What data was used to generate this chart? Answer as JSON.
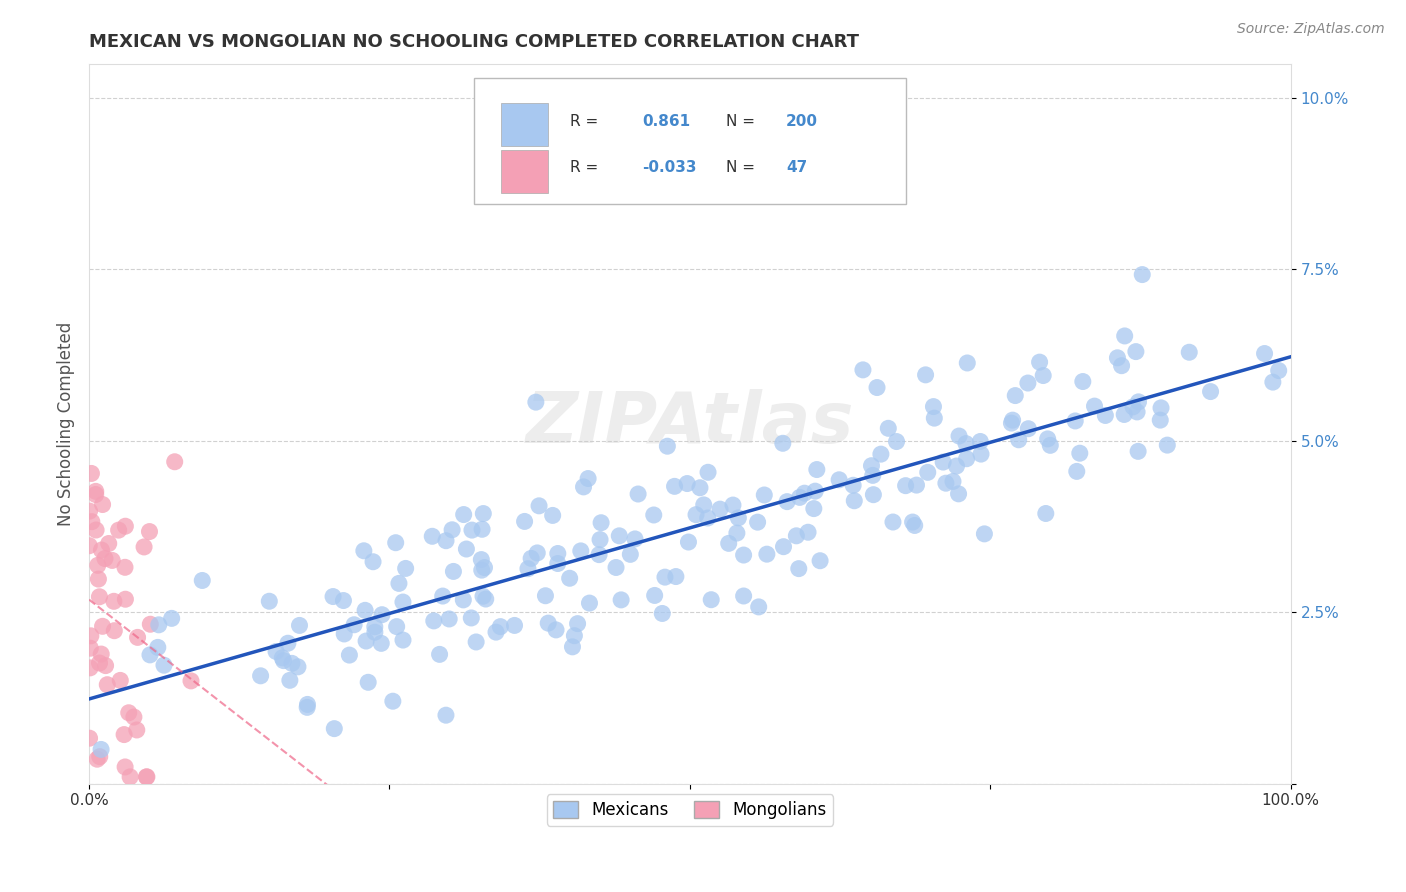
{
  "title": "MEXICAN VS MONGOLIAN NO SCHOOLING COMPLETED CORRELATION CHART",
  "source": "Source: ZipAtlas.com",
  "ylabel": "No Schooling Completed",
  "xlim": [
    0,
    1.0
  ],
  "ylim": [
    0,
    0.105
  ],
  "yticks": [
    0,
    0.025,
    0.05,
    0.075,
    0.1
  ],
  "ytick_labels": [
    "",
    "2.5%",
    "5.0%",
    "7.5%",
    "10.0%"
  ],
  "blue_R": 0.861,
  "blue_N": 200,
  "pink_R": -0.033,
  "pink_N": 47,
  "blue_color": "#A8C8F0",
  "pink_color": "#F4A0B5",
  "blue_line_color": "#2255BB",
  "pink_line_color": "#EE6688",
  "watermark": "ZIPAtlas",
  "legend_mexicans": "Mexicans",
  "legend_mongolians": "Mongolians",
  "blue_seed": 123,
  "pink_seed": 55,
  "tick_color": "#4488CC",
  "grid_color": "#CCCCCC"
}
